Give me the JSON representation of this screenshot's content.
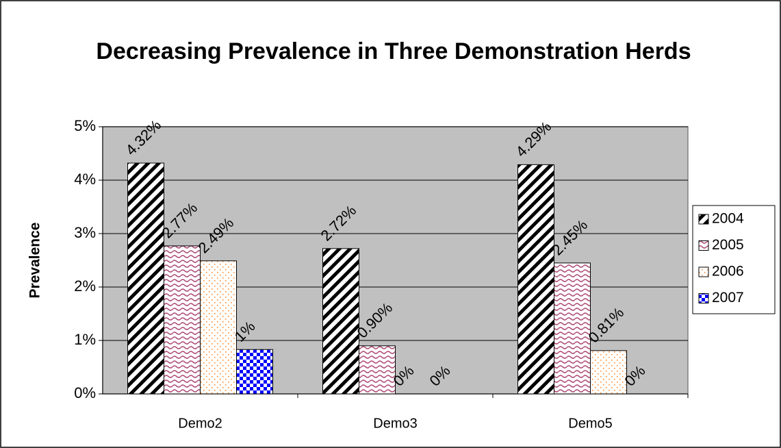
{
  "chart_data": {
    "type": "bar",
    "title": "Decreasing Prevalence in Three Demonstration Herds",
    "y_label": "Prevalence",
    "categories": [
      "Demo2",
      "Demo3",
      "Demo5"
    ],
    "series": [
      {
        "name": "2004",
        "color": "#000000",
        "pattern": "diagonal",
        "values": [
          4.32,
          2.72,
          4.29
        ],
        "value_labels": [
          "4.32%",
          "2.72%",
          "4.29%"
        ]
      },
      {
        "name": "2005",
        "color": "#b0507a",
        "pattern": "wave",
        "values": [
          2.77,
          0.9,
          2.45
        ],
        "value_labels": [
          "2.77%",
          "0.90%",
          "2.45%"
        ]
      },
      {
        "name": "2006",
        "color": "#ff8c33",
        "pattern": "dots",
        "values": [
          2.49,
          0,
          0.81
        ],
        "value_labels": [
          "2.49%",
          "0%",
          "0.81%"
        ]
      },
      {
        "name": "2007",
        "color": "#0000ff",
        "pattern": "checker",
        "values": [
          0.83,
          0,
          0
        ],
        "value_labels": [
          "1%",
          "0%",
          "0%"
        ]
      }
    ],
    "ylim": [
      0,
      5
    ],
    "yticks": [
      {
        "value": 0,
        "label": "0%"
      },
      {
        "value": 1,
        "label": "1%"
      },
      {
        "value": 2,
        "label": "2%"
      },
      {
        "value": 3,
        "label": "3%"
      },
      {
        "value": 4,
        "label": "4%"
      },
      {
        "value": 5,
        "label": "5%"
      }
    ],
    "grid": true,
    "legend": "right",
    "plot_background": "#c0c0c0"
  }
}
